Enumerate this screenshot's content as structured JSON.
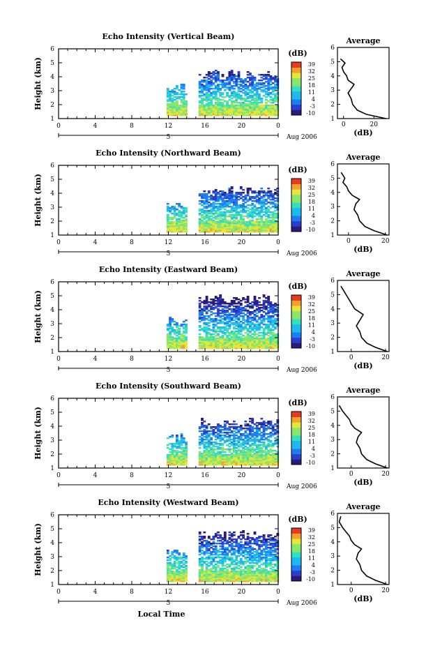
{
  "chart_data": {
    "type": "heatmap",
    "title": "",
    "xlabel": "Local Time",
    "date_label": "Aug 2006",
    "day_marker": "5",
    "x_ticks": [
      "0",
      "4",
      "8",
      "12",
      "16",
      "20",
      "0"
    ],
    "y_ticks": [
      "1",
      "2",
      "3",
      "4",
      "5",
      "6"
    ],
    "ylabel": "Height (km)",
    "ylim": [
      1,
      6
    ],
    "colorbar_label": "(dB)",
    "colorbar_ticks": [
      "39",
      "32",
      "25",
      "18",
      "11",
      "4",
      "-3",
      "-10"
    ],
    "colorbar_range": [
      -10,
      39
    ],
    "average_title": "Average",
    "average_xlabel": "(dB)",
    "average_y_ticks": [
      "1",
      "2",
      "3",
      "4",
      "5",
      "6"
    ],
    "panels": [
      {
        "title": "Echo Intensity (Vertical Beam)",
        "echo_top_km": 4.2,
        "average_x_ticks": [
          "0",
          "20"
        ],
        "average_xlim": [
          -4,
          30
        ],
        "average_profile": {
          "height_km": [
            1.0,
            1.3,
            1.6,
            2.0,
            2.4,
            2.8,
            3.1,
            3.4,
            3.7,
            4.0,
            4.3,
            4.6,
            4.9,
            5.2
          ],
          "db": [
            28,
            15,
            9,
            6,
            5,
            3,
            5,
            7,
            3,
            2,
            0,
            -1,
            1,
            -2
          ]
        }
      },
      {
        "title": "Echo Intensity (Northward Beam)",
        "echo_top_km": 4.2,
        "average_x_ticks": [
          "0",
          "20"
        ],
        "average_xlim": [
          -6,
          22
        ],
        "average_profile": {
          "height_km": [
            1.0,
            1.3,
            1.6,
            2.0,
            2.4,
            2.8,
            3.2,
            3.5,
            3.8,
            4.1,
            4.4,
            4.7,
            5.0,
            5.4
          ],
          "db": [
            21,
            14,
            9,
            6,
            5,
            3,
            4,
            6,
            2,
            0,
            -1,
            -3,
            -2,
            -4
          ]
        }
      },
      {
        "title": "Echo Intensity (Eastward Beam)",
        "echo_top_km": 4.8,
        "average_x_ticks": [
          "0",
          "20"
        ],
        "average_xlim": [
          -8,
          22
        ],
        "average_profile": {
          "height_km": [
            1.0,
            1.3,
            1.6,
            2.0,
            2.4,
            2.8,
            3.2,
            3.6,
            4.0,
            4.4,
            4.8,
            5.2,
            5.6
          ],
          "db": [
            21,
            14,
            9,
            6,
            5,
            3,
            5,
            7,
            2,
            0,
            -2,
            -4,
            -6
          ]
        }
      },
      {
        "title": "Echo Intensity (Southward Beam)",
        "echo_top_km": 4.4,
        "average_x_ticks": [
          "0",
          "20"
        ],
        "average_xlim": [
          -8,
          22
        ],
        "average_profile": {
          "height_km": [
            1.0,
            1.3,
            1.6,
            2.0,
            2.4,
            2.8,
            3.2,
            3.5,
            3.8,
            4.1,
            4.4,
            4.7,
            5.0,
            5.4
          ],
          "db": [
            21,
            14,
            9,
            6,
            5,
            3,
            4,
            6,
            2,
            0,
            -1,
            -3,
            -5,
            -7
          ]
        }
      },
      {
        "title": "Echo Intensity (Westward Beam)",
        "echo_top_km": 4.6,
        "average_x_ticks": [
          "0",
          "20"
        ],
        "average_xlim": [
          -8,
          22
        ],
        "average_profile": {
          "height_km": [
            1.0,
            1.3,
            1.6,
            2.0,
            2.4,
            2.8,
            3.2,
            3.5,
            3.8,
            4.1,
            4.4,
            4.7,
            5.0,
            5.4,
            5.8
          ],
          "db": [
            21,
            14,
            9,
            6,
            5,
            3,
            4,
            6,
            2,
            0,
            -1,
            -3,
            -5,
            -7,
            -6
          ]
        }
      }
    ]
  },
  "colors": {
    "colormap": [
      "#2a1a7a",
      "#2a3fd0",
      "#1e7df0",
      "#1fb8f0",
      "#32e0c0",
      "#8ae66a",
      "#e6e63a",
      "#f5a02a",
      "#e83a1e"
    ]
  }
}
